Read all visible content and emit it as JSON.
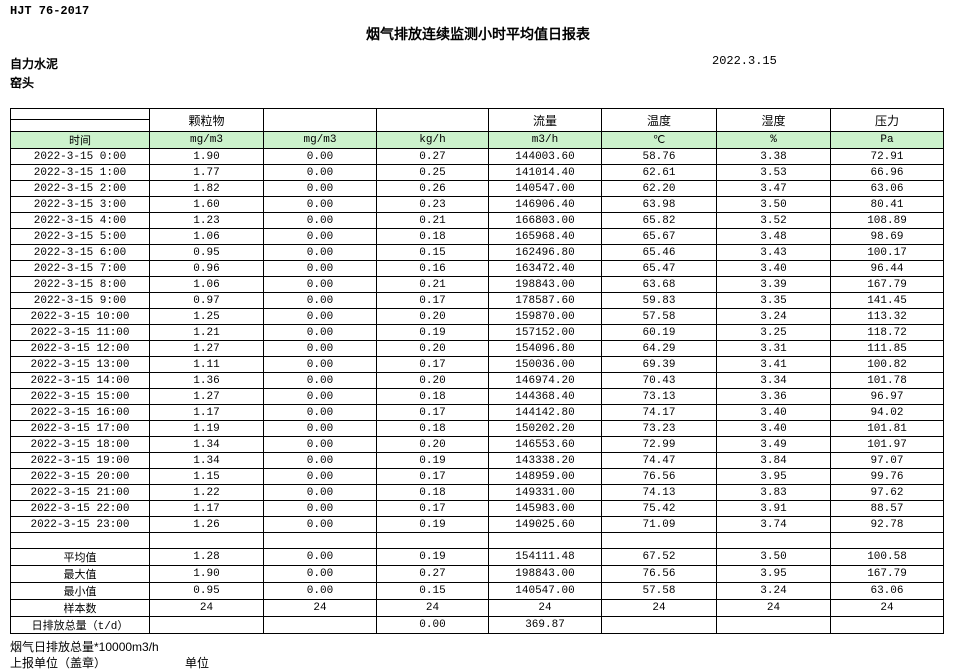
{
  "header": {
    "standard": "HJT  76-2017",
    "title": "烟气排放连续监测小时平均值日报表",
    "company": "自力水泥",
    "location": "窑头",
    "date": "2022.3.15"
  },
  "colors": {
    "header_green": "#ccf2cc"
  },
  "table": {
    "group_headers": [
      "",
      "颗粒物",
      "",
      "",
      "流量",
      "温度",
      "湿度",
      "压力"
    ],
    "unit_headers": [
      "时间",
      "mg/m3",
      "mg/m3",
      "kg/h",
      "m3/h",
      "℃",
      "%",
      "Pa"
    ],
    "rows": [
      [
        "2022-3-15 0:00",
        "1.90",
        "0.00",
        "0.27",
        "144003.60",
        "58.76",
        "3.38",
        "72.91"
      ],
      [
        "2022-3-15 1:00",
        "1.77",
        "0.00",
        "0.25",
        "141014.40",
        "62.61",
        "3.53",
        "66.96"
      ],
      [
        "2022-3-15 2:00",
        "1.82",
        "0.00",
        "0.26",
        "140547.00",
        "62.20",
        "3.47",
        "63.06"
      ],
      [
        "2022-3-15 3:00",
        "1.60",
        "0.00",
        "0.23",
        "146906.40",
        "63.98",
        "3.50",
        "80.41"
      ],
      [
        "2022-3-15 4:00",
        "1.23",
        "0.00",
        "0.21",
        "166803.00",
        "65.82",
        "3.52",
        "108.89"
      ],
      [
        "2022-3-15 5:00",
        "1.06",
        "0.00",
        "0.18",
        "165968.40",
        "65.67",
        "3.48",
        "98.69"
      ],
      [
        "2022-3-15 6:00",
        "0.95",
        "0.00",
        "0.15",
        "162496.80",
        "65.46",
        "3.43",
        "100.17"
      ],
      [
        "2022-3-15 7:00",
        "0.96",
        "0.00",
        "0.16",
        "163472.40",
        "65.47",
        "3.40",
        "96.44"
      ],
      [
        "2022-3-15 8:00",
        "1.06",
        "0.00",
        "0.21",
        "198843.00",
        "63.68",
        "3.39",
        "167.79"
      ],
      [
        "2022-3-15 9:00",
        "0.97",
        "0.00",
        "0.17",
        "178587.60",
        "59.83",
        "3.35",
        "141.45"
      ],
      [
        "2022-3-15 10:00",
        "1.25",
        "0.00",
        "0.20",
        "159870.00",
        "57.58",
        "3.24",
        "113.32"
      ],
      [
        "2022-3-15 11:00",
        "1.21",
        "0.00",
        "0.19",
        "157152.00",
        "60.19",
        "3.25",
        "118.72"
      ],
      [
        "2022-3-15 12:00",
        "1.27",
        "0.00",
        "0.20",
        "154096.80",
        "64.29",
        "3.31",
        "111.85"
      ],
      [
        "2022-3-15 13:00",
        "1.11",
        "0.00",
        "0.17",
        "150036.00",
        "69.39",
        "3.41",
        "100.82"
      ],
      [
        "2022-3-15 14:00",
        "1.36",
        "0.00",
        "0.20",
        "146974.20",
        "70.43",
        "3.34",
        "101.78"
      ],
      [
        "2022-3-15 15:00",
        "1.27",
        "0.00",
        "0.18",
        "144368.40",
        "73.13",
        "3.36",
        "96.97"
      ],
      [
        "2022-3-15 16:00",
        "1.17",
        "0.00",
        "0.17",
        "144142.80",
        "74.17",
        "3.40",
        "94.02"
      ],
      [
        "2022-3-15 17:00",
        "1.19",
        "0.00",
        "0.18",
        "150202.20",
        "73.23",
        "3.40",
        "101.81"
      ],
      [
        "2022-3-15 18:00",
        "1.34",
        "0.00",
        "0.20",
        "146553.60",
        "72.99",
        "3.49",
        "101.97"
      ],
      [
        "2022-3-15 19:00",
        "1.34",
        "0.00",
        "0.19",
        "143338.20",
        "74.47",
        "3.84",
        "97.07"
      ],
      [
        "2022-3-15 20:00",
        "1.15",
        "0.00",
        "0.17",
        "148959.00",
        "76.56",
        "3.95",
        "99.76"
      ],
      [
        "2022-3-15 21:00",
        "1.22",
        "0.00",
        "0.18",
        "149331.00",
        "74.13",
        "3.83",
        "97.62"
      ],
      [
        "2022-3-15 22:00",
        "1.17",
        "0.00",
        "0.17",
        "145983.00",
        "75.42",
        "3.91",
        "88.57"
      ],
      [
        "2022-3-15 23:00",
        "1.26",
        "0.00",
        "0.19",
        "149025.60",
        "71.09",
        "3.74",
        "92.78"
      ]
    ],
    "spacer": [
      "",
      "",
      "",
      "",
      "",
      "",
      "",
      ""
    ],
    "summary": [
      [
        "平均值",
        "1.28",
        "0.00",
        "0.19",
        "154111.48",
        "67.52",
        "3.50",
        "100.58"
      ],
      [
        "最大值",
        "1.90",
        "0.00",
        "0.27",
        "198843.00",
        "76.56",
        "3.95",
        "167.79"
      ],
      [
        "最小值",
        "0.95",
        "0.00",
        "0.15",
        "140547.00",
        "57.58",
        "3.24",
        "63.06"
      ],
      [
        "样本数",
        "24",
        "24",
        "24",
        "24",
        "24",
        "24",
        "24"
      ],
      [
        "日排放总量（t/d）",
        "",
        "",
        "0.00",
        "369.87",
        "",
        "",
        ""
      ]
    ]
  },
  "footer": {
    "note1": "烟气日排放总量*10000m3/h",
    "note2": "上报单位（盖章）",
    "note3": "单位"
  }
}
